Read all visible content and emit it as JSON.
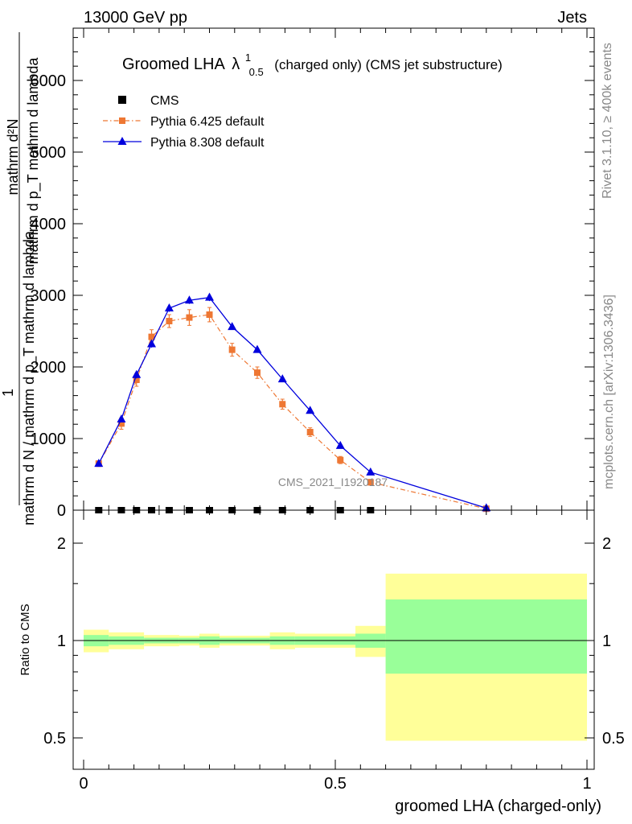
{
  "header": {
    "left": "13000 GeV pp",
    "right": "Jets"
  },
  "side_labels": {
    "rivet": "Rivet 3.1.10, ≥ 400k events",
    "mcplots": "mcplots.cern.ch [arXiv:1306.3436]"
  },
  "watermark": "CMS_2021_I1920187",
  "colors": {
    "cms": "#000000",
    "pythia6": "#ee7733",
    "pythia8": "#0000dd",
    "band_inner": "#99ff99",
    "band_outer": "#ffff99"
  },
  "chart_data": [
    {
      "type": "line",
      "title": {
        "main": "Groomed LHA",
        "symbol": "λ",
        "sup": "1",
        "sub": "0.5",
        "extra": "(charged only) (CMS jet substructure)"
      },
      "ylabel": {
        "numerator": "mathrm d²N",
        "numerator_line2": "mathrm d p_T mathrm d lambda",
        "one": "1",
        "denominator": "mathrm d N / mathrm d p_T mathrm d lambda"
      },
      "xlim": [
        0,
        1
      ],
      "ylim": [
        0,
        6700
      ],
      "yticks": [
        0,
        1000,
        2000,
        3000,
        4000,
        5000,
        6000
      ],
      "ytick_labels": [
        "0",
        "1000",
        "2000",
        "3000",
        "4000",
        "5000",
        "6000"
      ],
      "legend_position": "top-left",
      "series": [
        {
          "name": "CMS",
          "marker": "square",
          "x": [
            0.03,
            0.075,
            0.105,
            0.135,
            0.17,
            0.21,
            0.25,
            0.295,
            0.345,
            0.395,
            0.45,
            0.51,
            0.57
          ],
          "y": [
            0,
            0,
            0,
            0,
            0,
            0,
            0,
            0,
            0,
            0,
            0,
            0,
            0
          ]
        },
        {
          "name": "Pythia 6.425 default",
          "marker": "square",
          "style": "dashdot",
          "x": [
            0.03,
            0.075,
            0.105,
            0.135,
            0.17,
            0.21,
            0.25,
            0.295,
            0.345,
            0.395,
            0.45,
            0.51,
            0.57,
            0.8
          ],
          "y": [
            650,
            1210,
            1820,
            2420,
            2640,
            2690,
            2730,
            2240,
            1920,
            1480,
            1090,
            700,
            390,
            20
          ],
          "err": [
            40,
            80,
            90,
            100,
            90,
            110,
            100,
            90,
            80,
            70,
            60,
            50,
            40,
            8
          ]
        },
        {
          "name": "Pythia 8.308 default",
          "marker": "triangle",
          "style": "solid",
          "x": [
            0.03,
            0.075,
            0.105,
            0.135,
            0.17,
            0.21,
            0.25,
            0.295,
            0.345,
            0.395,
            0.45,
            0.51,
            0.57,
            0.8
          ],
          "y": [
            650,
            1270,
            1890,
            2320,
            2820,
            2930,
            2970,
            2560,
            2240,
            1830,
            1390,
            900,
            530,
            30
          ],
          "err": [
            20,
            40,
            50,
            50,
            50,
            50,
            50,
            40,
            40,
            30,
            30,
            25,
            20,
            5
          ]
        }
      ]
    },
    {
      "type": "area",
      "ylabel": "Ratio to CMS",
      "xlabel": "groomed LHA (charged-only)",
      "xlim": [
        0,
        1
      ],
      "ylim": [
        0.4,
        2.3
      ],
      "yticks": [
        0.5,
        1,
        2
      ],
      "ytick_labels": [
        "0.5",
        "1",
        "2"
      ],
      "xticks": [
        0,
        0.5,
        1
      ],
      "xtick_labels": [
        "0",
        "0.5",
        "1"
      ],
      "bins": [
        {
          "x0": 0.0,
          "x1": 0.05,
          "inner": [
            0.96,
            1.04
          ],
          "outer": [
            0.92,
            1.08
          ]
        },
        {
          "x0": 0.05,
          "x1": 0.12,
          "inner": [
            0.97,
            1.03
          ],
          "outer": [
            0.94,
            1.06
          ]
        },
        {
          "x0": 0.12,
          "x1": 0.19,
          "inner": [
            0.98,
            1.02
          ],
          "outer": [
            0.96,
            1.04
          ]
        },
        {
          "x0": 0.19,
          "x1": 0.23,
          "inner": [
            0.98,
            1.02
          ],
          "outer": [
            0.965,
            1.035
          ]
        },
        {
          "x0": 0.23,
          "x1": 0.27,
          "inner": [
            0.97,
            1.03
          ],
          "outer": [
            0.95,
            1.05
          ]
        },
        {
          "x0": 0.27,
          "x1": 0.37,
          "inner": [
            0.98,
            1.02
          ],
          "outer": [
            0.965,
            1.035
          ]
        },
        {
          "x0": 0.37,
          "x1": 0.42,
          "inner": [
            0.97,
            1.03
          ],
          "outer": [
            0.94,
            1.06
          ]
        },
        {
          "x0": 0.42,
          "x1": 0.54,
          "inner": [
            0.97,
            1.03
          ],
          "outer": [
            0.95,
            1.05
          ]
        },
        {
          "x0": 0.54,
          "x1": 0.6,
          "inner": [
            0.95,
            1.05
          ],
          "outer": [
            0.89,
            1.11
          ]
        },
        {
          "x0": 0.6,
          "x1": 1.0,
          "inner": [
            0.79,
            1.34
          ],
          "outer": [
            0.49,
            1.61
          ]
        }
      ]
    }
  ]
}
